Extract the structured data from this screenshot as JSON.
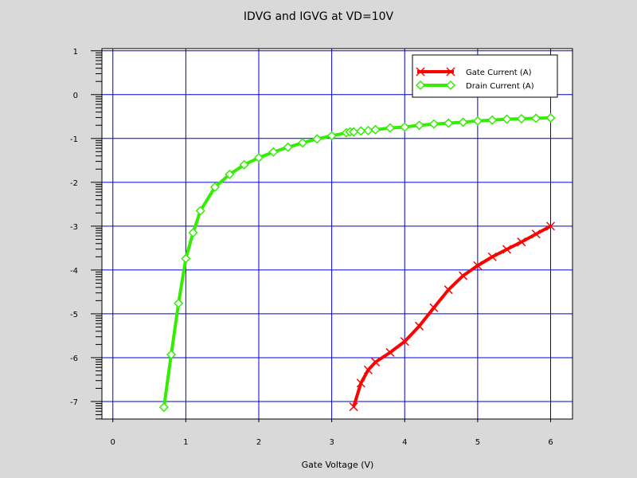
{
  "chart_data": {
    "type": "line",
    "title": "IDVG and IGVG at VD=10V",
    "xlabel": "Gate Voltage (V)",
    "ylabel": "",
    "xlim": [
      -0.15,
      6.3
    ],
    "ylim": [
      -7.4,
      1.05
    ],
    "x_ticks": [
      0,
      1,
      2,
      3,
      4,
      5,
      6
    ],
    "x_tick_labels": [
      "0",
      "1",
      "2",
      "3",
      "4",
      "5",
      "6"
    ],
    "y_ticks": [
      1,
      0,
      -1,
      -2,
      -3,
      -4,
      -5,
      -6,
      -7
    ],
    "y_tick_labels": [
      "1",
      "0",
      "-1",
      "-2",
      "-3",
      "-4",
      "-5",
      "-6",
      "-7"
    ],
    "grid": true,
    "legend_position": "top-right",
    "series": [
      {
        "name": "Gate Current (A)",
        "color": "#ff0000",
        "marker": "x",
        "x": [
          3.3,
          3.4,
          3.5,
          3.6,
          3.8,
          4.0,
          4.2,
          4.4,
          4.6,
          4.8,
          5.0,
          5.2,
          5.4,
          5.6,
          5.8,
          6.0
        ],
        "y": [
          -7.12,
          -6.58,
          -6.28,
          -6.1,
          -5.88,
          -5.63,
          -5.28,
          -4.86,
          -4.45,
          -4.13,
          -3.9,
          -3.7,
          -3.53,
          -3.36,
          -3.18,
          -3.0
        ]
      },
      {
        "name": "Drain Current (A)",
        "color": "#33ee00",
        "marker": "diamond",
        "x": [
          0.7,
          0.8,
          0.9,
          1.0,
          1.1,
          1.2,
          1.4,
          1.6,
          1.8,
          2.0,
          2.2,
          2.4,
          2.6,
          2.8,
          3.0,
          3.2,
          3.25,
          3.3,
          3.4,
          3.5,
          3.6,
          3.8,
          4.0,
          4.2,
          4.4,
          4.6,
          4.8,
          5.0,
          5.2,
          5.4,
          5.6,
          5.8,
          6.0
        ],
        "y": [
          -7.13,
          -5.93,
          -4.76,
          -3.74,
          -3.15,
          -2.65,
          -2.11,
          -1.82,
          -1.6,
          -1.44,
          -1.31,
          -1.2,
          -1.1,
          -1.01,
          -0.94,
          -0.87,
          -0.85,
          -0.85,
          -0.83,
          -0.82,
          -0.8,
          -0.76,
          -0.74,
          -0.7,
          -0.67,
          -0.65,
          -0.63,
          -0.6,
          -0.58,
          -0.56,
          -0.55,
          -0.54,
          -0.53
        ]
      }
    ]
  }
}
